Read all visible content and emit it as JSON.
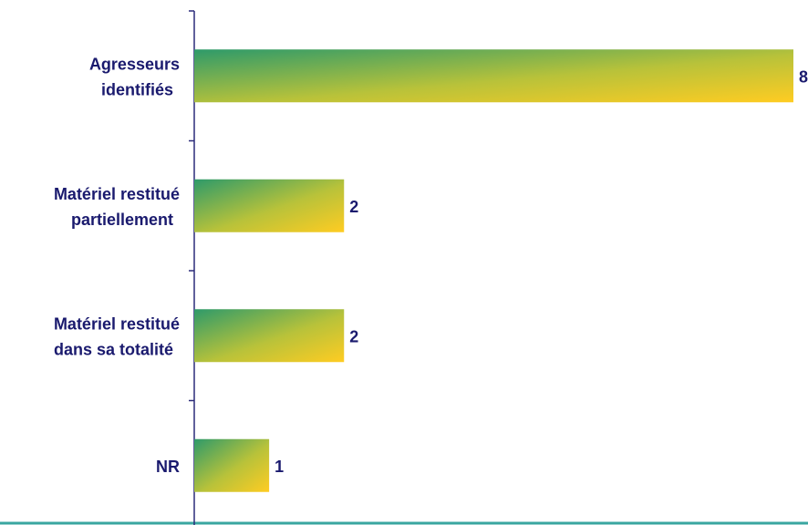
{
  "chart_data": {
    "type": "bar",
    "orientation": "horizontal",
    "categories": [
      [
        "Agresseurs",
        "identifiés"
      ],
      [
        "Matériel restitué",
        "partiellement"
      ],
      [
        "Matériel restitué",
        "dans sa totalité"
      ],
      [
        "NR"
      ]
    ],
    "values": [
      8,
      2,
      2,
      1
    ],
    "xlim": [
      0,
      8
    ],
    "grid": false,
    "legend": "none"
  },
  "colors": {
    "text": "#1a1a6e",
    "axis": "#2b2b7a",
    "baseline": "#3aa6a0",
    "bar_start": "#2e9a6a",
    "bar_end": "#ffcc22"
  }
}
